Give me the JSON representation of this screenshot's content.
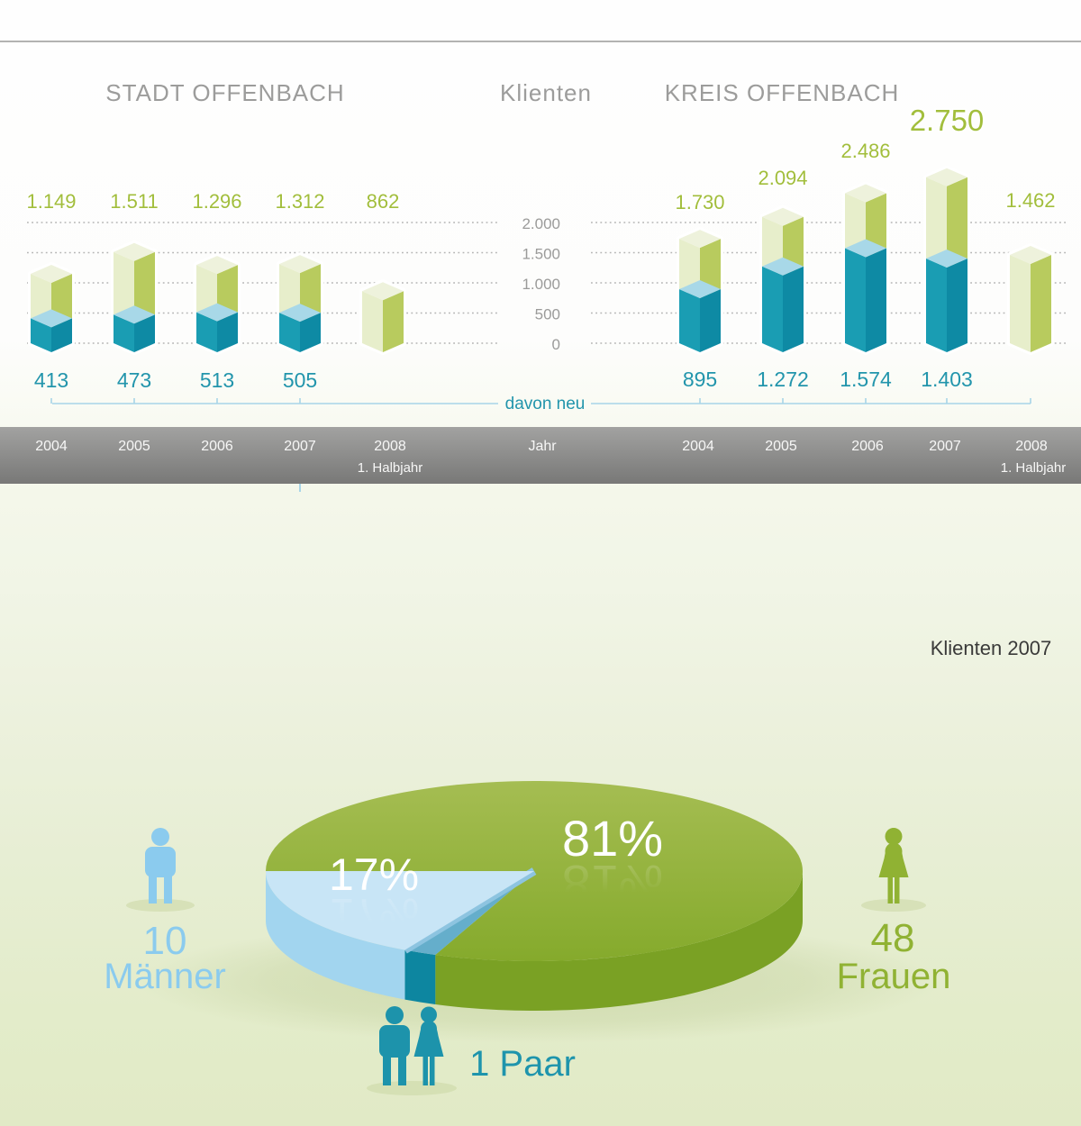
{
  "header": {
    "left": "STADT OFFENBACH",
    "center": "Klienten",
    "right": "KREIS OFFENBACH"
  },
  "axis": {
    "ticks": [
      {
        "label": "2.000",
        "value": 2000
      },
      {
        "label": "1.500",
        "value": 1500
      },
      {
        "label": "1.000",
        "value": 1000
      },
      {
        "label": "500",
        "value": 500
      },
      {
        "label": "0",
        "value": 0
      }
    ],
    "series_label": "davon neu",
    "x_axis_label": "Jahr"
  },
  "band": {
    "years": [
      "2004",
      "2005",
      "2006",
      "2007",
      "2008"
    ],
    "halbjahr_note": "1. Halbjahr"
  },
  "chart_data": [
    {
      "type": "bar",
      "title": "Klienten – STADT OFFENBACH",
      "categories": [
        "2004",
        "2005",
        "2006",
        "2007",
        "2008 (1. Halbjahr)"
      ],
      "series": [
        {
          "name": "Klienten",
          "values": [
            1149,
            1511,
            1296,
            1312,
            862
          ],
          "labels": [
            "1.149",
            "1.511",
            "1.296",
            "1.312",
            "862"
          ]
        },
        {
          "name": "davon neu",
          "values": [
            413,
            473,
            513,
            505,
            null
          ],
          "labels": [
            "413",
            "473",
            "513",
            "505",
            ""
          ]
        }
      ],
      "ylim": [
        0,
        2000
      ],
      "grid": true,
      "legend_position": "none"
    },
    {
      "type": "bar",
      "title": "Klienten – KREIS OFFENBACH",
      "categories": [
        "2004",
        "2005",
        "2006",
        "2007",
        "2008 (1. Halbjahr)"
      ],
      "series": [
        {
          "name": "Klienten",
          "values": [
            1730,
            2094,
            2486,
            2750,
            1462
          ],
          "labels": [
            "1.730",
            "2.094",
            "2.486",
            "2.750",
            "1.462"
          ]
        },
        {
          "name": "davon neu",
          "values": [
            895,
            1272,
            1574,
            1403,
            null
          ],
          "labels": [
            "895",
            "1.272",
            "1.574",
            "1.403",
            ""
          ]
        }
      ],
      "ylim": [
        0,
        2000
      ],
      "grid": true,
      "legend_position": "none"
    },
    {
      "type": "pie",
      "title": "Klienten 2007",
      "slices": [
        {
          "label": "Frauen",
          "count": 48,
          "pct": 81,
          "pct_label": "81%",
          "color": "#8fb236"
        },
        {
          "label": "Männer",
          "count": 10,
          "pct": 17,
          "pct_label": "17%",
          "color": "#c8e5f6"
        },
        {
          "label": "Paar",
          "count": 1,
          "pct": 2,
          "pct_label": "",
          "color": "#0d86a0"
        }
      ]
    }
  ],
  "pie_section": {
    "title": "Klienten 2007",
    "label_81": "81%",
    "label_17": "17%",
    "maenner": {
      "count": "10",
      "label": "Männer"
    },
    "frauen": {
      "count": "48",
      "label": "Frauen"
    },
    "paar": {
      "label": "1 Paar"
    }
  },
  "colors": {
    "grid": "#b4b4b3",
    "axis_text": "#9b9b9a",
    "header_text": "#9c9c9b",
    "label_green": "#a2be3c",
    "label_teal": "#2295ac",
    "bar_green_left": "#e7eecb",
    "bar_green_right": "#b8cb5e",
    "bar_green_top": "#eef2dc",
    "bar_teal_left": "#1a9db3",
    "bar_teal_right": "#0e8aa4",
    "bar_teal_top": "#a8d8e8",
    "neu_line": "#a8d5e8",
    "pie_green_top_a": "#a5bd52",
    "pie_green_top_b": "#85aa2c",
    "pie_green_side": "#7aa124",
    "pie_blue_top": "#c8e5f6",
    "pie_blue_side": "#a2d5ef",
    "pie_blue_edge": "#8dc4e0",
    "pie_paar_side": "#0d86a0",
    "pie_paar_top": "#65aecb",
    "icon_blue": "#8bcbee",
    "icon_green": "#90b233",
    "icon_teal": "#1d93ab"
  }
}
